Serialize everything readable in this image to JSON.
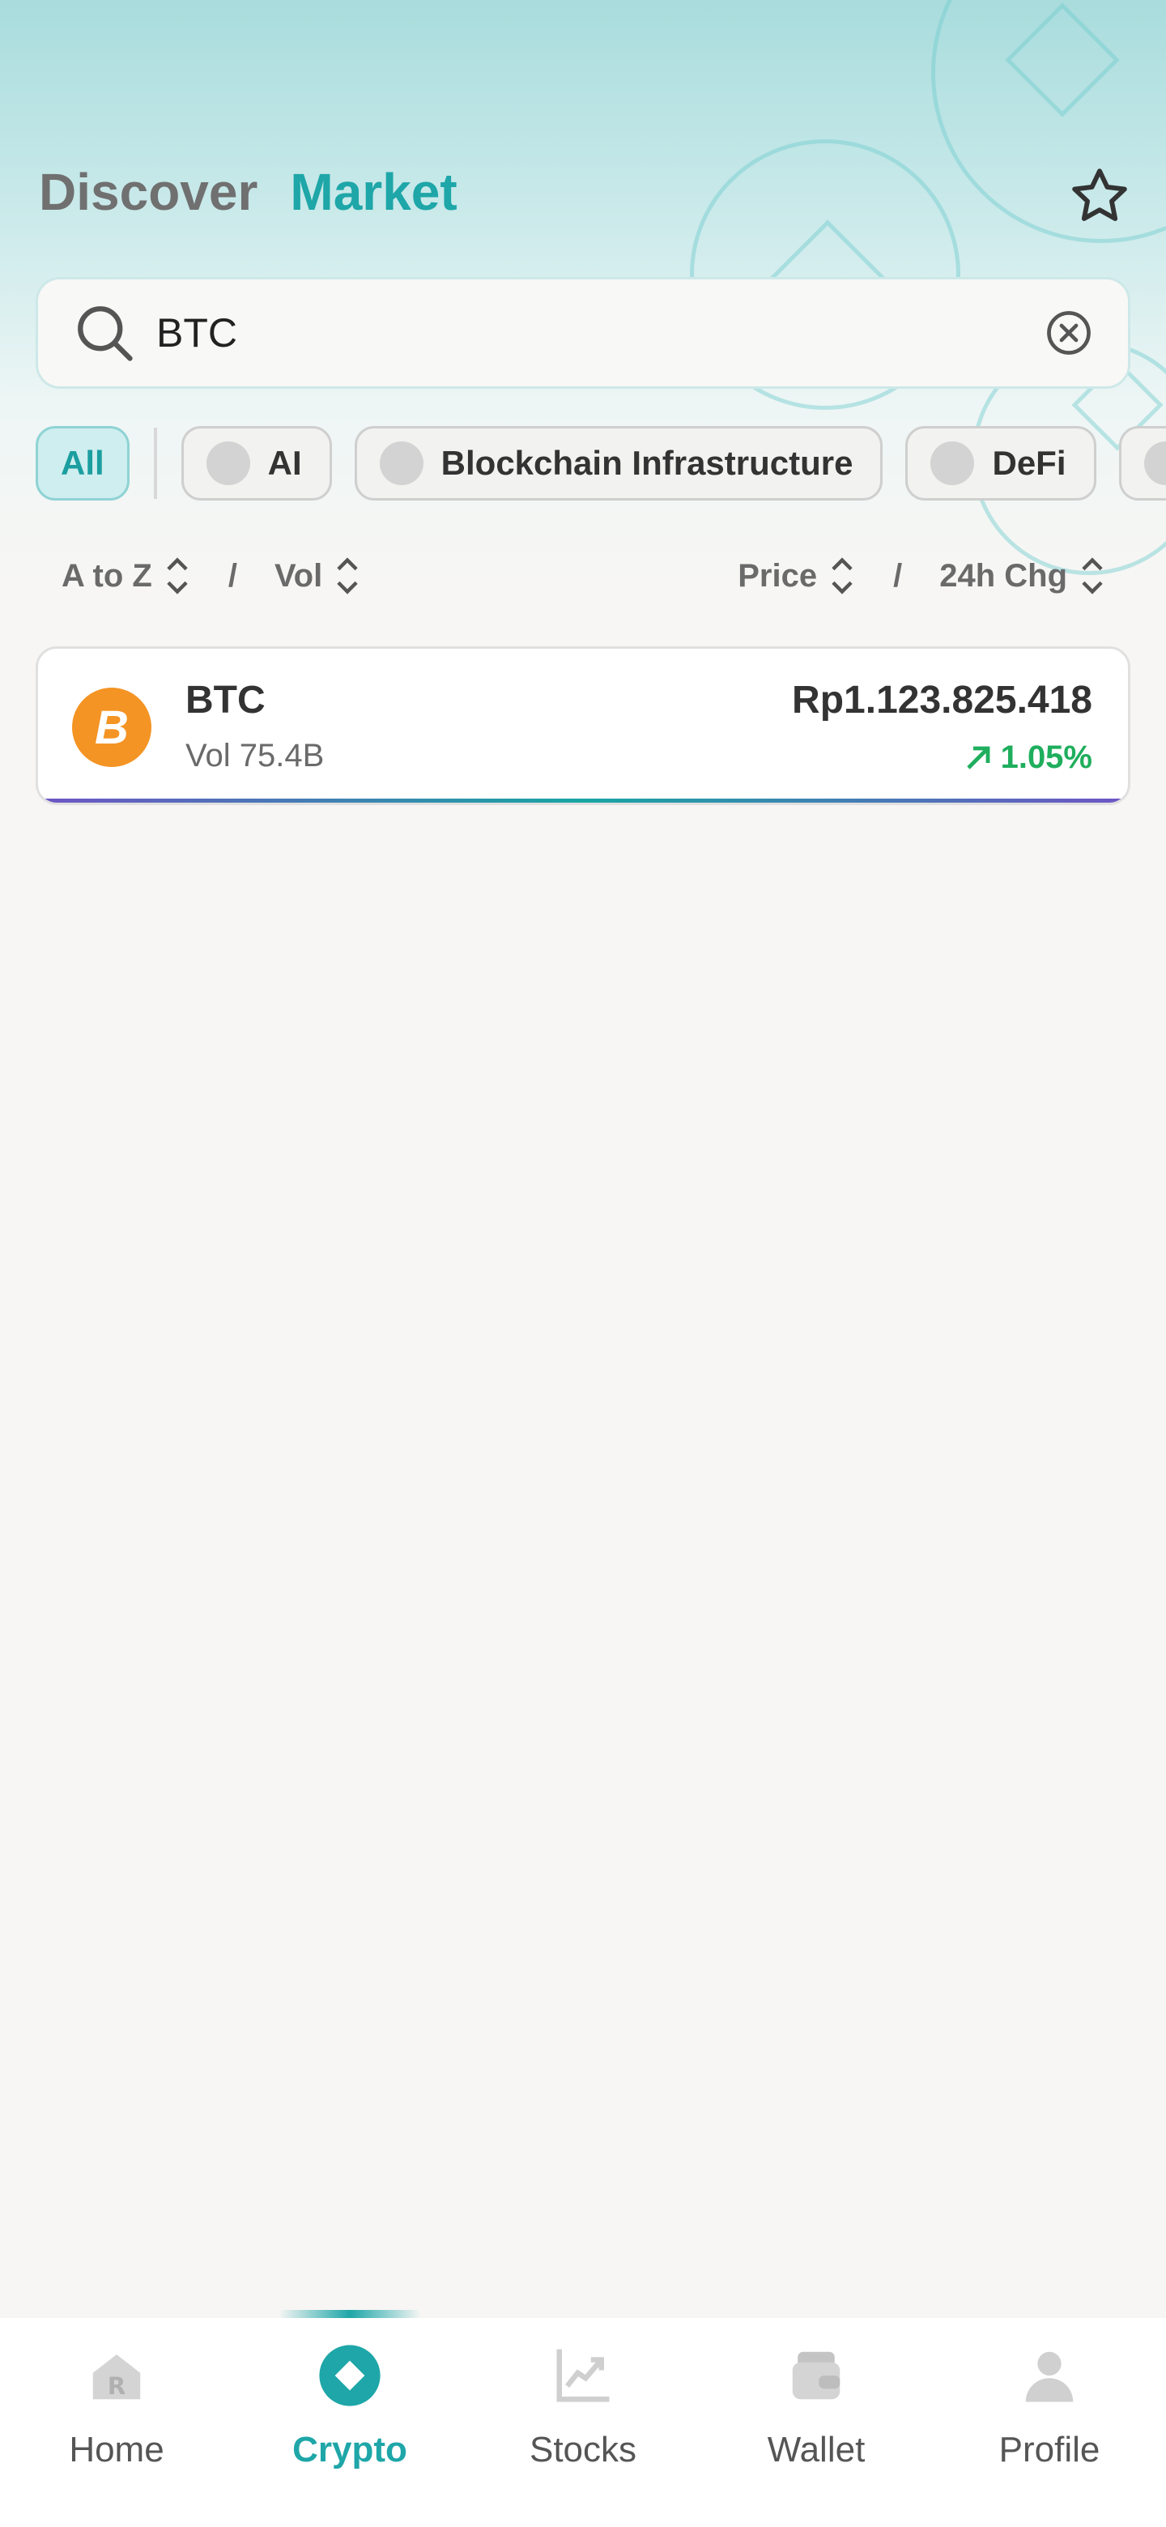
{
  "header": {
    "tab_discover": "Discover",
    "tab_market": "Market",
    "favorite_icon": "star-icon"
  },
  "search": {
    "value": "BTC",
    "search_icon": "search-icon",
    "clear_icon": "clear-icon"
  },
  "filters": {
    "chips": [
      {
        "label": "All",
        "active": true
      },
      {
        "label": "AI",
        "active": false
      },
      {
        "label": "Blockchain Infrastructure",
        "active": false
      },
      {
        "label": "DeFi",
        "active": false
      }
    ]
  },
  "sort": {
    "name": "A to Z",
    "vol": "Vol",
    "price": "Price",
    "change": "24h Chg",
    "separator": "/"
  },
  "coins": [
    {
      "symbol": "BTC",
      "logo_letter": "B",
      "volume": "Vol 75.4B",
      "price": "Rp1.123.825.418",
      "change": "1.05%",
      "change_direction": "up"
    }
  ],
  "nav": {
    "items": [
      {
        "label": "Home",
        "icon": "home-icon",
        "active": false
      },
      {
        "label": "Crypto",
        "icon": "crypto-icon",
        "active": true
      },
      {
        "label": "Stocks",
        "icon": "stocks-icon",
        "active": false
      },
      {
        "label": "Wallet",
        "icon": "wallet-icon",
        "active": false
      },
      {
        "label": "Profile",
        "icon": "profile-icon",
        "active": false
      }
    ]
  },
  "colors": {
    "accent": "#1ea6a8",
    "positive": "#1fae5d",
    "btc_orange": "#f49424"
  }
}
